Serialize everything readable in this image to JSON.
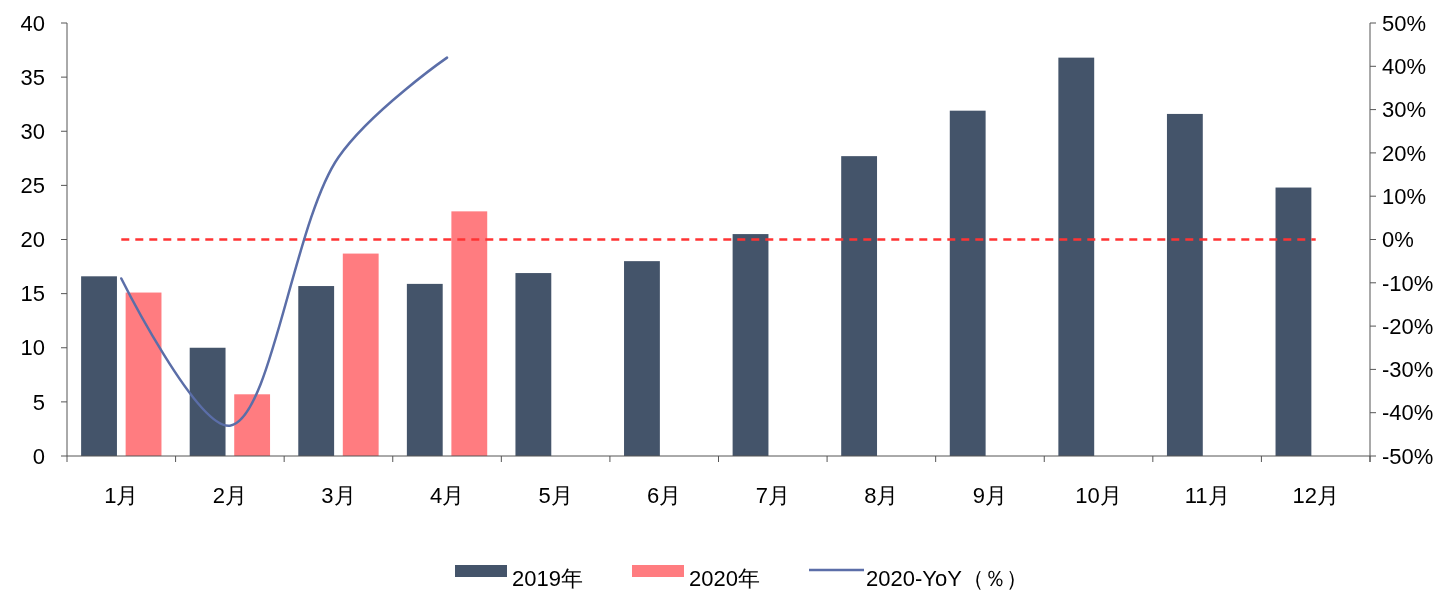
{
  "chart_data": {
    "type": "bar",
    "categories": [
      "1月",
      "2月",
      "3月",
      "4月",
      "5月",
      "6月",
      "7月",
      "8月",
      "9月",
      "10月",
      "11月",
      "12月"
    ],
    "series": [
      {
        "name": "2019年",
        "color": "#44546a",
        "values": [
          16.6,
          10.0,
          15.7,
          15.9,
          16.9,
          18.0,
          20.5,
          27.7,
          31.9,
          36.8,
          31.6,
          24.8
        ]
      },
      {
        "name": "2020年",
        "color": "#ff7c80",
        "values": [
          15.1,
          5.7,
          18.7,
          22.6,
          null,
          null,
          null,
          null,
          null,
          null,
          null,
          null
        ]
      },
      {
        "name": "2020-YoY（％）",
        "type": "line",
        "axis": "y2",
        "color": "#5b6ea8",
        "values": [
          -9,
          -43,
          19,
          42,
          null,
          null,
          null,
          null,
          null,
          null,
          null,
          null
        ]
      }
    ],
    "ylim": [
      0,
      40
    ],
    "yticks": [
      0,
      5,
      10,
      15,
      20,
      25,
      30,
      35,
      40
    ],
    "y2lim": [
      -50,
      50
    ],
    "y2ticks": [
      {
        "value": -50,
        "label": "-50%"
      },
      {
        "value": -40,
        "label": "-40%"
      },
      {
        "value": -30,
        "label": "-30%"
      },
      {
        "value": -20,
        "label": "-20%"
      },
      {
        "value": -10,
        "label": "-10%"
      },
      {
        "value": 0,
        "label": "0%"
      },
      {
        "value": 10,
        "label": "10%"
      },
      {
        "value": 20,
        "label": "20%"
      },
      {
        "value": 30,
        "label": "30%"
      },
      {
        "value": 40,
        "label": "40%"
      },
      {
        "value": 50,
        "label": "50%"
      }
    ],
    "ref_lines": [
      {
        "axis": "y2",
        "value": 0,
        "color": "#ff3333",
        "line_style": "dashed"
      }
    ],
    "grid": false,
    "legend": "bottom"
  }
}
